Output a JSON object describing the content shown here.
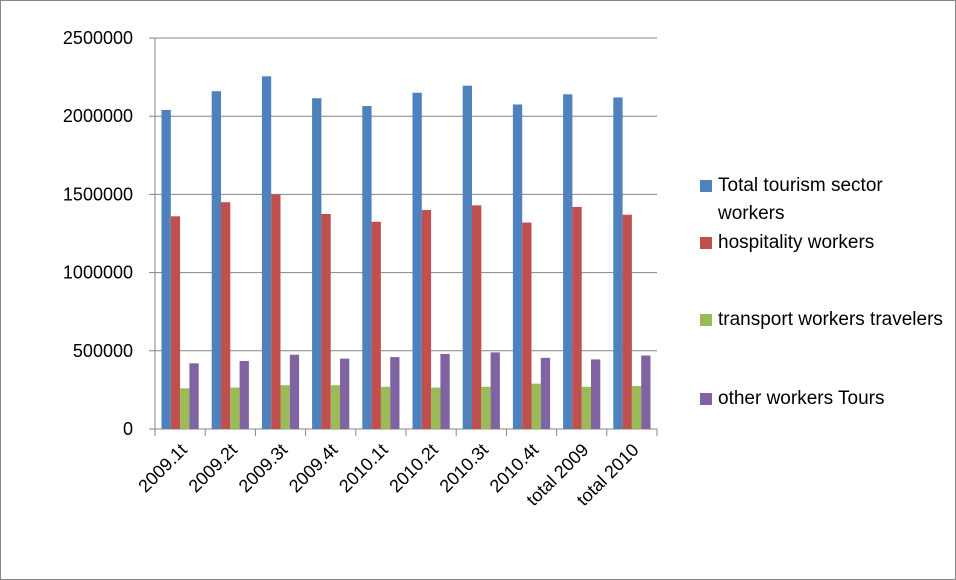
{
  "chart_data": {
    "type": "bar",
    "categories": [
      "2009.1t",
      "2009.2t",
      "2009.3t",
      "2009.4t",
      "2010.1t",
      "2010.2t",
      "2010.3t",
      "2010.4t",
      "total 2009",
      "total 2010"
    ],
    "series": [
      {
        "name": "Total tourism sector workers",
        "color": "#4f81bd",
        "values": [
          2040000,
          2160000,
          2255000,
          2115000,
          2065000,
          2150000,
          2195000,
          2075000,
          2140000,
          2120000
        ]
      },
      {
        "name": "hospitality workers",
        "color": "#c0504d",
        "values": [
          1360000,
          1450000,
          1500000,
          1375000,
          1325000,
          1400000,
          1430000,
          1320000,
          1420000,
          1370000
        ]
      },
      {
        "name": "transport workers travelers",
        "color": "#9bbb59",
        "values": [
          260000,
          265000,
          280000,
          280000,
          270000,
          265000,
          270000,
          290000,
          270000,
          275000
        ]
      },
      {
        "name": "other workers Tours",
        "color": "#8064a2",
        "values": [
          420000,
          435000,
          475000,
          450000,
          460000,
          480000,
          490000,
          455000,
          445000,
          470000
        ]
      }
    ],
    "ylim": [
      0,
      2500000
    ],
    "yticks": [
      0,
      500000,
      1000000,
      1500000,
      2000000,
      2500000
    ],
    "grid": true,
    "legend": "right"
  }
}
